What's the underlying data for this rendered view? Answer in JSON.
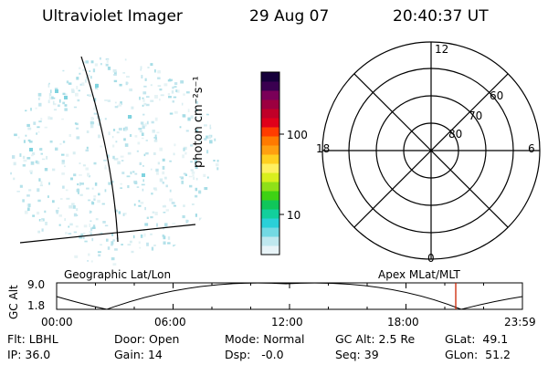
{
  "header": {
    "instrument": "Ultraviolet Imager",
    "date": "29 Aug 07",
    "time": "20:40:37 UT"
  },
  "colorbar": {
    "label": "photon cm⁻²s⁻¹",
    "ticks": [
      "100",
      "10"
    ],
    "colors": [
      "#e8f4f8",
      "#bfe8ef",
      "#73d9e3",
      "#2ad0d8",
      "#12cf9c",
      "#10c65a",
      "#3ed214",
      "#8fe018",
      "#d9ef1e",
      "#fff060",
      "#ffd020",
      "#ffa010",
      "#ff7a00",
      "#ff3c00",
      "#e0001a",
      "#c00028",
      "#9c0040",
      "#7a0058",
      "#3a0050",
      "#16003a"
    ]
  },
  "polar": {
    "clock_labels": {
      "top": "12",
      "left": "18",
      "right": "6",
      "bottom": "0"
    },
    "lat_labels": [
      "80",
      "70",
      "60"
    ]
  },
  "lower_panel": {
    "left_title": "Geographic Lat/Lon",
    "right_title": "Apex MLat/MLT",
    "ylabel": "GC Alt",
    "ytick_top": "9.0",
    "ytick_bottom": "1.8",
    "x_ticks": [
      "00:00",
      "06:00",
      "12:00",
      "18:00",
      "23:59"
    ],
    "current_marker_time": "20:40",
    "colors": {
      "orbit": "#000000",
      "marker": "#cc2200"
    }
  },
  "footer": {
    "row1": [
      {
        "label": "Flt:",
        "value": "LBHL"
      },
      {
        "label": "Door:",
        "value": "Open"
      },
      {
        "label": "Mode:",
        "value": "Normal"
      },
      {
        "label": "GC Alt:",
        "value": "2.5 Re"
      },
      {
        "label": "GLat:",
        "value": "49.1"
      }
    ],
    "row2": [
      {
        "label": "IP:",
        "value": "36.0"
      },
      {
        "label": "Gain:",
        "value": "14"
      },
      {
        "label": "Dsp:",
        "value": "-0.0"
      },
      {
        "label": "Seq:",
        "value": "39"
      },
      {
        "label": "GLon:",
        "value": "51.2"
      }
    ]
  }
}
